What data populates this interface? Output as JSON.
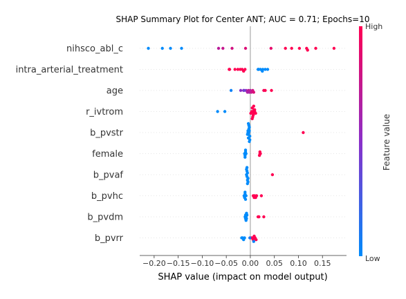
{
  "chart_data": {
    "type": "scatter",
    "title": "SHAP Summary Plot for Center ANT; AUC = 0.71; Epochs=10",
    "xlabel": "SHAP value (impact on model output)",
    "ylabel": "",
    "xlim": [
      -0.23,
      0.2
    ],
    "xticks": [
      -0.2,
      -0.15,
      -0.1,
      -0.05,
      0.0,
      0.05,
      0.1,
      0.15
    ],
    "xtick_labels": [
      "−0.20",
      "−0.15",
      "−0.10",
      "−0.05",
      "0.00",
      "0.05",
      "0.10",
      "0.15"
    ],
    "features": [
      "nihsco_abl_c",
      "intra_arterial_treatment",
      "age",
      "r_ivtrom",
      "b_pvstr",
      "female",
      "b_pvaf",
      "b_pvhc",
      "b_pvdm",
      "b_pvrr"
    ],
    "colorbar": {
      "label": "Feature value",
      "high_label": "High",
      "low_label": "Low",
      "low_color": "#008bfb",
      "high_color": "#ff0052"
    },
    "series": [
      {
        "feature": "nihsco_abl_c",
        "points": [
          [
            -0.212,
            0.0
          ],
          [
            -0.183,
            0.0
          ],
          [
            -0.166,
            0.0
          ],
          [
            -0.143,
            0.0
          ],
          [
            -0.066,
            0.7
          ],
          [
            -0.057,
            0.75
          ],
          [
            -0.038,
            0.8
          ],
          [
            -0.01,
            0.85
          ],
          [
            0.043,
            0.9
          ],
          [
            0.073,
            1.0
          ],
          [
            0.086,
            1.0
          ],
          [
            0.102,
            1.0
          ],
          [
            0.117,
            1.0
          ],
          [
            0.119,
            1.0
          ],
          [
            0.136,
            1.0
          ],
          [
            0.174,
            1.0
          ]
        ]
      },
      {
        "feature": "intra_arterial_treatment",
        "points": [
          [
            -0.044,
            1.0
          ],
          [
            -0.043,
            1.0
          ],
          [
            -0.032,
            1.0
          ],
          [
            -0.026,
            1.0
          ],
          [
            -0.021,
            1.0
          ],
          [
            -0.017,
            1.0
          ],
          [
            -0.014,
            1.0
          ],
          [
            -0.011,
            1.0
          ],
          [
            0.016,
            0.0
          ],
          [
            0.026,
            0.0
          ],
          [
            0.017,
            0.0
          ],
          [
            0.021,
            0.0
          ],
          [
            0.025,
            0.0
          ],
          [
            0.031,
            0.0
          ],
          [
            0.036,
            0.0
          ]
        ]
      },
      {
        "feature": "age",
        "points": [
          [
            -0.04,
            0.05
          ],
          [
            -0.02,
            0.5
          ],
          [
            -0.014,
            0.6
          ],
          [
            -0.009,
            0.55
          ],
          [
            -0.006,
            0.65
          ],
          [
            -0.004,
            0.7
          ],
          [
            -0.002,
            0.62
          ],
          [
            0.0,
            0.68
          ],
          [
            0.002,
            0.75
          ],
          [
            0.005,
            0.8
          ],
          [
            0.007,
            0.85
          ],
          [
            0.028,
            0.95
          ],
          [
            0.031,
            1.0
          ],
          [
            0.044,
            1.0
          ],
          [
            -0.013,
            0.4
          ]
        ]
      },
      {
        "feature": "r_ivtrom",
        "points": [
          [
            -0.068,
            0.0
          ],
          [
            -0.053,
            0.0
          ],
          [
            0.005,
            1.0
          ],
          [
            0.007,
            1.0
          ],
          [
            0.008,
            1.0
          ],
          [
            0.006,
            1.0
          ],
          [
            0.004,
            1.0
          ],
          [
            0.009,
            1.0
          ],
          [
            0.003,
            1.0
          ],
          [
            0.011,
            1.0
          ],
          [
            0.001,
            1.0
          ],
          [
            0.005,
            1.0
          ],
          [
            0.007,
            1.0
          ],
          [
            0.009,
            1.0
          ],
          [
            0.004,
            1.0
          ]
        ]
      },
      {
        "feature": "b_pvstr",
        "points": [
          [
            -0.003,
            0.0
          ],
          [
            -0.004,
            0.0
          ],
          [
            -0.002,
            0.0
          ],
          [
            -0.005,
            0.0
          ],
          [
            -0.001,
            0.0
          ],
          [
            -0.003,
            0.0
          ],
          [
            -0.004,
            0.0
          ],
          [
            -0.002,
            0.0
          ],
          [
            -0.006,
            0.0
          ],
          [
            -0.001,
            0.0
          ],
          [
            -0.003,
            0.0
          ],
          [
            -0.005,
            0.0
          ],
          [
            -0.002,
            0.0
          ],
          [
            -0.004,
            0.0
          ],
          [
            0.11,
            1.0
          ]
        ]
      },
      {
        "feature": "female",
        "points": [
          [
            -0.012,
            0.0
          ],
          [
            -0.011,
            0.0
          ],
          [
            -0.01,
            0.0
          ],
          [
            -0.009,
            0.0
          ],
          [
            -0.011,
            0.0
          ],
          [
            -0.01,
            0.0
          ],
          [
            0.02,
            1.0
          ],
          [
            0.019,
            1.0
          ],
          [
            0.021,
            1.0
          ],
          [
            0.02,
            1.0
          ]
        ]
      },
      {
        "feature": "b_pvaf",
        "points": [
          [
            -0.008,
            0.0
          ],
          [
            -0.007,
            0.0
          ],
          [
            -0.006,
            0.0
          ],
          [
            -0.005,
            0.0
          ],
          [
            -0.007,
            0.0
          ],
          [
            -0.006,
            0.0
          ],
          [
            -0.008,
            0.0
          ],
          [
            -0.005,
            0.0
          ],
          [
            -0.007,
            0.0
          ],
          [
            -0.006,
            0.0
          ],
          [
            0.046,
            1.0
          ]
        ]
      },
      {
        "feature": "b_pvhc",
        "points": [
          [
            -0.013,
            0.0
          ],
          [
            -0.012,
            0.0
          ],
          [
            -0.011,
            0.0
          ],
          [
            -0.01,
            0.0
          ],
          [
            -0.011,
            0.0
          ],
          [
            -0.009,
            0.0
          ],
          [
            0.009,
            1.0
          ],
          [
            0.011,
            1.0
          ],
          [
            0.006,
            1.0
          ],
          [
            0.013,
            1.0
          ],
          [
            0.008,
            1.0
          ],
          [
            0.023,
            1.0
          ]
        ]
      },
      {
        "feature": "b_pvdm",
        "points": [
          [
            -0.011,
            0.0
          ],
          [
            -0.01,
            0.0
          ],
          [
            -0.009,
            0.0
          ],
          [
            -0.008,
            0.0
          ],
          [
            -0.007,
            0.0
          ],
          [
            -0.009,
            0.0
          ],
          [
            -0.01,
            0.0
          ],
          [
            -0.008,
            0.0
          ],
          [
            0.016,
            1.0
          ],
          [
            0.018,
            1.0
          ],
          [
            0.028,
            1.0
          ]
        ]
      },
      {
        "feature": "b_pvrr",
        "points": [
          [
            -0.018,
            0.0
          ],
          [
            -0.016,
            0.0
          ],
          [
            -0.014,
            0.0
          ],
          [
            -0.012,
            0.0
          ],
          [
            0.004,
            1.0
          ],
          [
            0.006,
            1.0
          ],
          [
            0.008,
            1.0
          ],
          [
            0.01,
            1.0
          ],
          [
            0.012,
            1.0
          ],
          [
            0.002,
            1.0
          ],
          [
            0.007,
            0.05
          ],
          [
            -0.001,
            0.1
          ]
        ]
      }
    ]
  }
}
